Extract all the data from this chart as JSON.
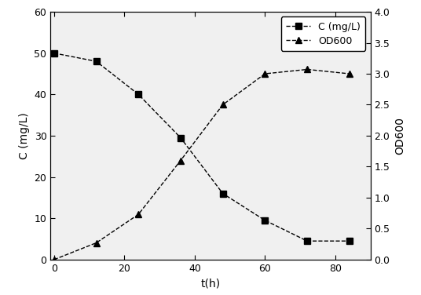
{
  "t_C": [
    0,
    12,
    24,
    36,
    48,
    60,
    72,
    84
  ],
  "C_values": [
    50,
    48,
    40,
    29.5,
    16,
    9.5,
    4.5,
    4.5
  ],
  "t_OD": [
    0,
    12,
    24,
    36,
    48,
    60,
    72,
    84
  ],
  "OD_values": [
    0,
    0.27,
    0.73,
    1.6,
    2.5,
    3.0,
    3.07,
    3.0
  ],
  "C_ylim": [
    0,
    60
  ],
  "OD_ylim": [
    0,
    4.0
  ],
  "C_yticks": [
    0,
    10,
    20,
    30,
    40,
    50,
    60
  ],
  "OD_yticks": [
    0.0,
    0.5,
    1.0,
    1.5,
    2.0,
    2.5,
    3.0,
    3.5,
    4.0
  ],
  "xticks": [
    0,
    20,
    40,
    60,
    80
  ],
  "xlim": [
    -1,
    90
  ],
  "xlabel": "t(h)",
  "ylabel_left": "C (mg/L)",
  "ylabel_right": "OD600",
  "legend_C": "C (mg/L)",
  "legend_OD": "OD600",
  "line_color": "#000000",
  "marker_square": "s",
  "marker_triangle": "^",
  "markersize": 6,
  "linewidth": 1.0,
  "linestyle": "--",
  "background_color": "#ffffff",
  "plot_bg_color": "#f0f0f0",
  "legend_fontsize": 9,
  "axis_fontsize": 10,
  "tick_fontsize": 9
}
